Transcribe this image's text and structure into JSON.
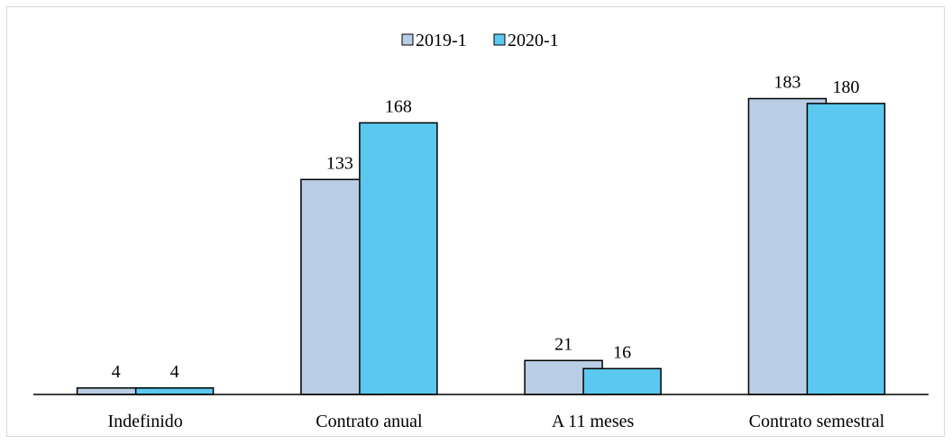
{
  "chart_data": {
    "type": "bar",
    "title": "",
    "xlabel": "",
    "ylabel": "",
    "categories": [
      "Indefinido",
      "Contrato anual",
      "A 11 meses",
      "Contrato semestral"
    ],
    "series": [
      {
        "name": "2019-1",
        "values": [
          4,
          133,
          21,
          183
        ],
        "color": "#b9cde5"
      },
      {
        "name": "2020-1",
        "values": [
          4,
          168,
          16,
          180
        ],
        "color": "#5bc8ef"
      }
    ],
    "ylim": [
      0,
      200
    ],
    "grid": false,
    "legend_position": "top-center",
    "data_labels": true,
    "bar_overlap": true
  }
}
